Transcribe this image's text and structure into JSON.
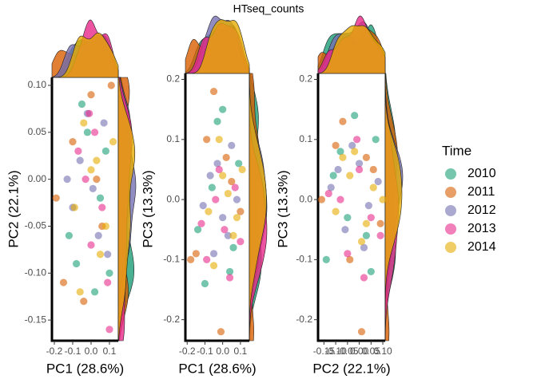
{
  "title": "HTseq_counts",
  "legend_title": "Time",
  "chart_data": [
    {
      "type": "scatter",
      "x_label": "PC1 (28.6%)",
      "y_label": "PC2 (22.1%)",
      "xlim": [
        -0.213,
        0.148
      ],
      "ylim": [
        -0.172,
        0.1085
      ],
      "xticks": [
        -0.2,
        -0.1,
        {
          "value": 0,
          "label": "0.0"
        },
        0.1
      ],
      "yticks": [
        {
          "value": 0.1,
          "label": "0.10"
        },
        0.05,
        {
          "value": 0,
          "label": "0.00"
        },
        -0.05,
        {
          "value": -0.1,
          "label": "-0.10"
        },
        -0.15
      ],
      "series": [
        {
          "name": "2010",
          "color": "#1b9e77",
          "x": [
            -0.12,
            -0.05,
            0.02,
            0.08,
            -0.08,
            0.05,
            -0.02,
            0.1
          ],
          "values": [
            -0.06,
            0.08,
            -0.12,
            0.03,
            -0.09,
            -0.02,
            0.05,
            -0.1
          ]
        },
        {
          "name": "2011",
          "color": "#d95f02",
          "x": [
            -0.15,
            -0.1,
            0.0,
            0.06,
            0.11,
            -0.04,
            0.03,
            -0.19
          ],
          "values": [
            -0.11,
            0.04,
            0.09,
            -0.05,
            0.1,
            -0.13,
            0.0,
            -0.02
          ]
        },
        {
          "name": "2012",
          "color": "#7570b3",
          "x": [
            -0.06,
            0.01,
            0.07,
            -0.1,
            0.04,
            -0.02,
            0.09,
            -0.13
          ],
          "values": [
            0.02,
            -0.01,
            0.06,
            -0.03,
            -0.06,
            0.07,
            -0.08,
            0.0
          ]
        },
        {
          "name": "2013",
          "color": "#e7298a",
          "x": [
            -0.03,
            0.02,
            0.06,
            -0.07,
            0.1,
            0.0,
            -0.01,
            0.09
          ],
          "values": [
            0.0,
            0.05,
            -0.03,
            0.03,
            -0.16,
            -0.07,
            0.07,
            -0.11
          ]
        },
        {
          "name": "2014",
          "color": "#e6ab02",
          "x": [
            -0.09,
            0.03,
            -0.04,
            0.05,
            0.12,
            -0.06,
            0.0,
            0.08
          ],
          "values": [
            -0.03,
            0.02,
            0.06,
            -0.08,
            0.04,
            -0.12,
            0.01,
            -0.05
          ]
        }
      ]
    },
    {
      "type": "scatter",
      "x_label": "PC1 (28.6%)",
      "y_label": "PC3 (13.3%)",
      "xlim": [
        -0.21,
        0.15
      ],
      "ylim": [
        -0.235,
        0.21
      ],
      "xticks": [
        -0.2,
        -0.1,
        {
          "value": 0,
          "label": "0.0"
        },
        0.1
      ],
      "yticks": [
        0.2,
        0.1,
        {
          "value": 0,
          "label": "0.0"
        },
        -0.1,
        -0.2
      ],
      "series": [
        {
          "name": "2010",
          "color": "#1b9e77",
          "x": [
            -0.1,
            -0.03,
            0.04,
            0.09,
            -0.14,
            0.0,
            0.06,
            -0.06
          ],
          "values": [
            -0.14,
            0.13,
            -0.12,
            0.06,
            -0.05,
            0.15,
            -0.08,
            0.02
          ]
        },
        {
          "name": "2011",
          "color": "#d95f02",
          "x": [
            -0.15,
            -0.05,
            0.02,
            0.1,
            -0.18,
            0.05,
            -0.01,
            -0.09
          ],
          "values": [
            -0.09,
            0.18,
            0.07,
            -0.02,
            -0.1,
            0.03,
            -0.22,
            0.1
          ]
        },
        {
          "name": "2012",
          "color": "#7570b3",
          "x": [
            -0.07,
            0.0,
            0.05,
            -0.11,
            0.08,
            -0.03,
            0.03,
            -0.05
          ],
          "values": [
            0.04,
            -0.03,
            0.09,
            -0.01,
            0.0,
            0.06,
            -0.06,
            -0.09
          ]
        },
        {
          "name": "2013",
          "color": "#e7298a",
          "x": [
            -0.04,
            0.01,
            0.07,
            -0.09,
            0.04,
            -0.02,
            0.1,
            -0.12
          ],
          "values": [
            0.0,
            -0.05,
            0.02,
            -0.1,
            -0.13,
            0.05,
            -0.07,
            -0.04
          ]
        },
        {
          "name": "2014",
          "color": "#e6ab02",
          "x": [
            -0.08,
            0.03,
            -0.02,
            0.06,
            0.11,
            -0.05,
            0.0,
            0.08
          ],
          "values": [
            -0.02,
            0.01,
            0.1,
            -0.06,
            0.05,
            -0.11,
            0.04,
            -0.03
          ]
        }
      ]
    },
    {
      "type": "scatter",
      "x_label": "PC2 (22.1%)",
      "y_label": "PC3 (13.3%)",
      "xlim": [
        -0.175,
        0.11
      ],
      "ylim": [
        -0.235,
        0.21
      ],
      "xticks": [
        -0.15,
        {
          "value": -0.1,
          "label": "-0.10"
        },
        -0.05,
        {
          "value": 0,
          "label": "0.00"
        },
        0.05,
        {
          "value": 0.1,
          "label": "0.10"
        }
      ],
      "yticks": [
        0.2,
        0.1,
        {
          "value": 0,
          "label": "0.0"
        },
        -0.1,
        -0.2
      ],
      "series": [
        {
          "name": "2010",
          "color": "#1b9e77",
          "x": [
            -0.14,
            -0.08,
            -0.02,
            0.03,
            0.07,
            -0.11,
            0.05,
            -0.05
          ],
          "values": [
            -0.1,
            0.08,
            0.14,
            -0.06,
            0.1,
            0.04,
            -0.12,
            -0.03
          ]
        },
        {
          "name": "2011",
          "color": "#d95f02",
          "x": [
            -0.16,
            -0.1,
            -0.04,
            0.01,
            0.06,
            0.09,
            -0.07,
            0.03
          ],
          "values": [
            0.0,
            0.09,
            -0.1,
            -0.22,
            0.05,
            -0.04,
            0.13,
            0.07
          ]
        },
        {
          "name": "2012",
          "color": "#7570b3",
          "x": [
            -0.12,
            -0.06,
            0.0,
            0.04,
            0.08,
            -0.03,
            0.02,
            -0.09
          ],
          "values": [
            0.02,
            -0.05,
            0.06,
            -0.01,
            0.03,
            0.09,
            -0.08,
            0.05
          ]
        },
        {
          "name": "2013",
          "color": "#e7298a",
          "x": [
            -0.13,
            -0.05,
            0.0,
            0.05,
            0.09,
            -0.08,
            0.02,
            -0.01
          ],
          "values": [
            0.01,
            -0.09,
            0.05,
            -0.03,
            -0.06,
            0.0,
            -0.13,
            0.1
          ]
        },
        {
          "name": "2014",
          "color": "#e6ab02",
          "x": [
            -0.1,
            -0.04,
            0.01,
            0.06,
            0.1,
            -0.07,
            0.03,
            -0.02
          ],
          "values": [
            -0.02,
            0.04,
            -0.07,
            0.02,
            0.0,
            0.07,
            -0.04,
            0.08
          ]
        }
      ]
    }
  ]
}
